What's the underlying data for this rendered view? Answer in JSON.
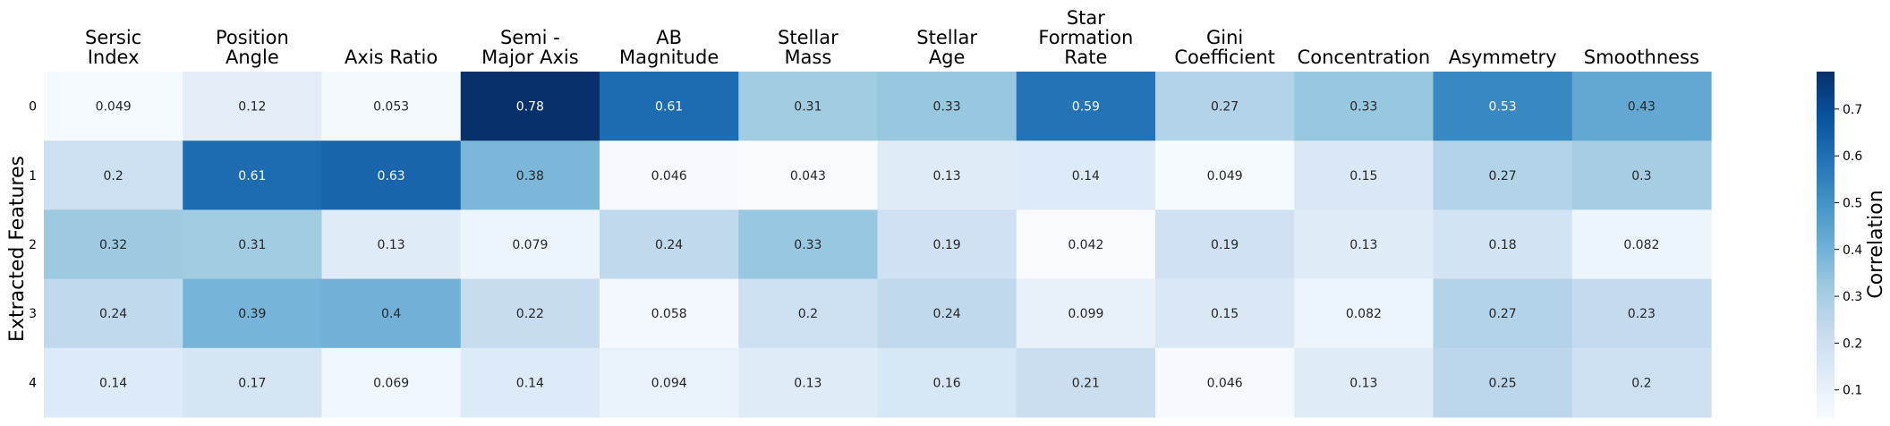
{
  "chart_data": {
    "type": "heatmap",
    "x_labels": [
      [
        "Sersic",
        "Index"
      ],
      [
        "Position",
        "Angle"
      ],
      [
        "Axis Ratio"
      ],
      [
        "Semi -",
        "Major Axis"
      ],
      [
        "AB",
        "Magnitude"
      ],
      [
        "Stellar",
        "Mass"
      ],
      [
        "Stellar",
        "Age"
      ],
      [
        "Star",
        "Formation",
        "Rate"
      ],
      [
        "Gini",
        "Coefficient"
      ],
      [
        "Concentration"
      ],
      [
        "Asymmetry"
      ],
      [
        "Smoothness"
      ]
    ],
    "y_labels": [
      "0",
      "1",
      "2",
      "3",
      "4"
    ],
    "values": [
      [
        "0.049",
        "0.12",
        "0.053",
        "0.78",
        "0.61",
        "0.31",
        "0.33",
        "0.59",
        "0.27",
        "0.33",
        "0.53",
        "0.43"
      ],
      [
        "0.2",
        "0.61",
        "0.63",
        "0.38",
        "0.046",
        "0.043",
        "0.13",
        "0.14",
        "0.049",
        "0.15",
        "0.27",
        "0.3"
      ],
      [
        "0.32",
        "0.31",
        "0.13",
        "0.079",
        "0.24",
        "0.33",
        "0.19",
        "0.042",
        "0.19",
        "0.13",
        "0.18",
        "0.082"
      ],
      [
        "0.24",
        "0.39",
        "0.4",
        "0.22",
        "0.058",
        "0.2",
        "0.24",
        "0.099",
        "0.15",
        "0.082",
        "0.27",
        "0.23"
      ],
      [
        "0.14",
        "0.17",
        "0.069",
        "0.14",
        "0.094",
        "0.13",
        "0.16",
        "0.21",
        "0.046",
        "0.13",
        "0.25",
        "0.2"
      ]
    ],
    "ylabel": "Extracted Features",
    "colorbar_label": "Correlation",
    "colorbar_ticks": [
      "0.1",
      "0.2",
      "0.3",
      "0.4",
      "0.5",
      "0.6",
      "0.7"
    ],
    "vmin": 0.042,
    "vmax": 0.78,
    "colormap": "Blues",
    "colormap_stops": [
      "#f7fbff",
      "#deebf7",
      "#c6dbef",
      "#9ecae1",
      "#6baed6",
      "#4292c6",
      "#2171b5",
      "#08519c",
      "#08306b"
    ]
  }
}
